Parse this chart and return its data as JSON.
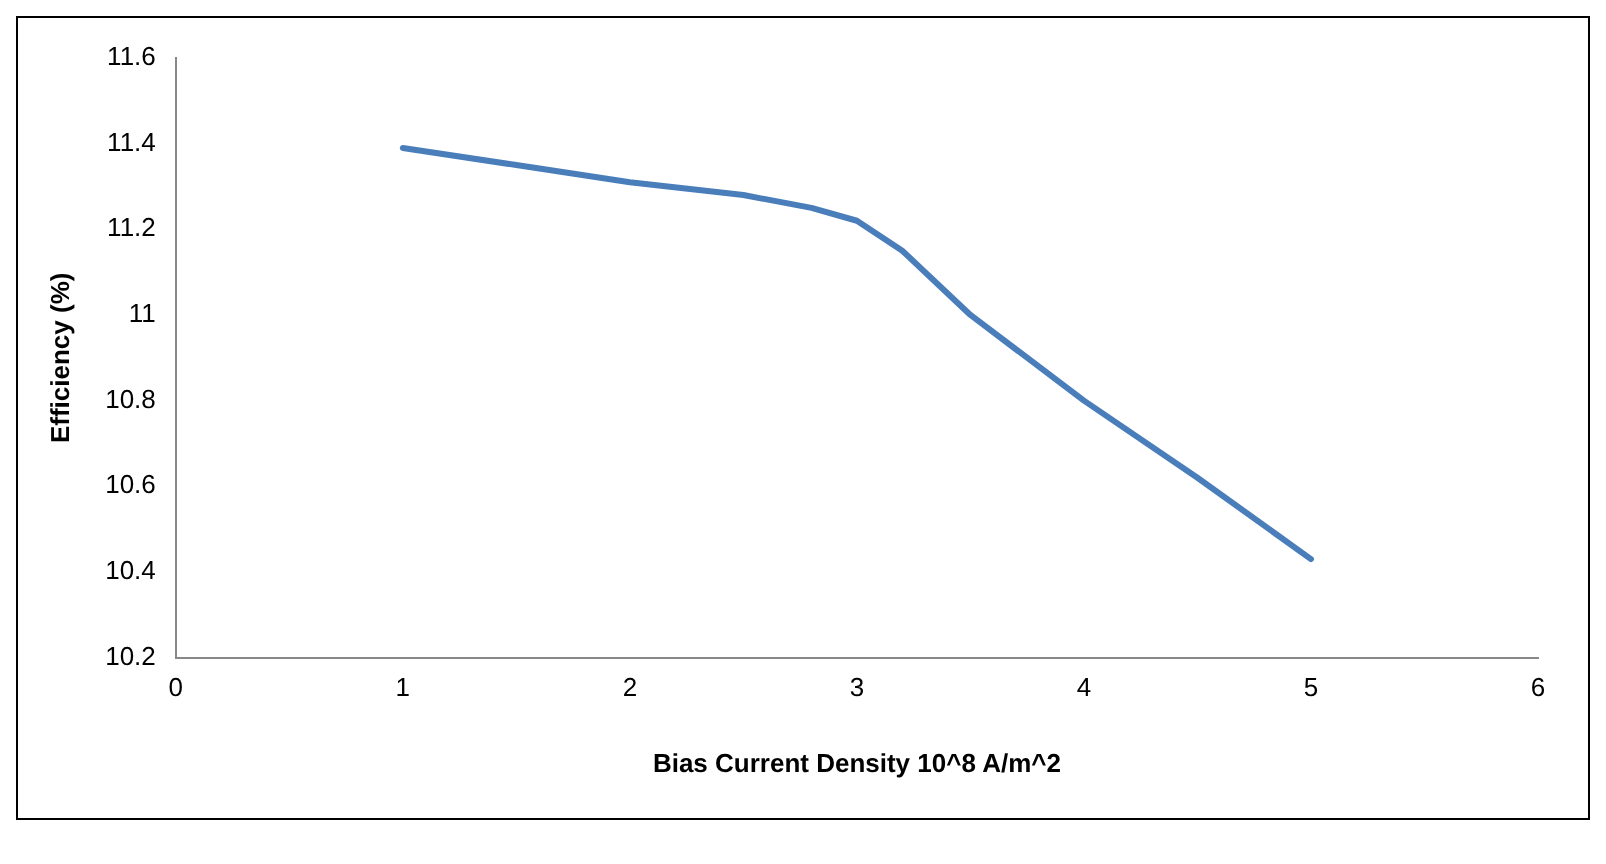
{
  "chart_data": {
    "type": "line",
    "xlabel": "Bias Current Density 10^8 A/m^2",
    "ylabel": "Efficiency (%)",
    "x": [
      1,
      1.5,
      2,
      2.5,
      2.8,
      3,
      3.2,
      3.5,
      4,
      4.5,
      5
    ],
    "series": [
      {
        "color": "#4a7ebb",
        "values": [
          11.39,
          11.35,
          11.31,
          11.28,
          11.25,
          11.22,
          11.15,
          11.0,
          10.8,
          10.62,
          10.43
        ]
      }
    ],
    "xlim": [
      0,
      6
    ],
    "xticks": [
      0,
      1,
      2,
      3,
      4,
      5,
      6
    ],
    "ylim": [
      10.2,
      11.6
    ],
    "yticks": [
      10.2,
      10.4,
      10.6,
      10.8,
      11,
      11.2,
      11.4,
      11.6
    ],
    "grid": false,
    "legend": false,
    "marker": "none",
    "line_style": "solid"
  }
}
